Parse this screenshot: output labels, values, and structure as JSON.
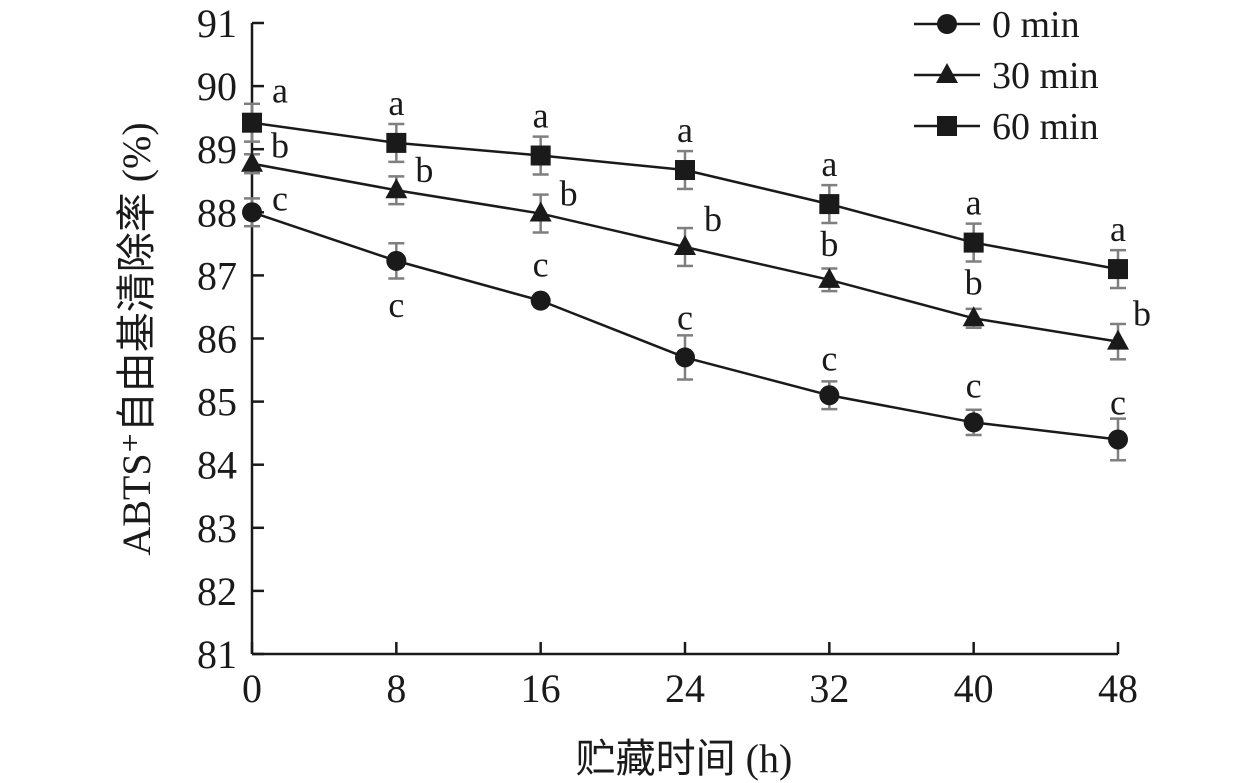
{
  "chart_data": {
    "type": "line",
    "title": "",
    "xlabel": "贮藏时间 (h)",
    "ylabel": "ABTS⁺自由基清除率 (%)",
    "x": [
      0,
      8,
      16,
      24,
      32,
      40,
      48
    ],
    "xlim": [
      0,
      48
    ],
    "ylim": [
      81,
      91
    ],
    "xticks": [
      "0",
      "8",
      "16",
      "24",
      "32",
      "40",
      "48"
    ],
    "yticks": [
      "81",
      "82",
      "83",
      "84",
      "85",
      "86",
      "87",
      "88",
      "89",
      "90",
      "91"
    ],
    "grid": false,
    "legend_position": "top-right",
    "series": [
      {
        "name": "0 min",
        "marker": "circle",
        "values": [
          88.0,
          87.23,
          86.6,
          85.7,
          85.1,
          84.67,
          84.4
        ],
        "errors": [
          0.22,
          0.28,
          0.05,
          0.35,
          0.22,
          0.2,
          0.33
        ],
        "labels": [
          "c",
          "c",
          "c",
          "c",
          "c",
          "c",
          "c"
        ]
      },
      {
        "name": "30 min",
        "marker": "triangle",
        "values": [
          88.77,
          88.35,
          87.98,
          87.45,
          86.93,
          86.32,
          85.95
        ],
        "errors": [
          0.15,
          0.22,
          0.3,
          0.3,
          0.18,
          0.15,
          0.28
        ],
        "labels": [
          "b",
          "b",
          "b",
          "b",
          "b",
          "b",
          "b"
        ]
      },
      {
        "name": "60 min",
        "marker": "square",
        "values": [
          89.42,
          89.1,
          88.9,
          88.67,
          88.13,
          87.52,
          87.1
        ],
        "errors": [
          0.3,
          0.3,
          0.3,
          0.3,
          0.3,
          0.3,
          0.3
        ],
        "labels": [
          "a",
          "a",
          "a",
          "a",
          "a",
          "a",
          "a"
        ]
      }
    ],
    "colors": {
      "line": "#1a1a1a",
      "error_bar": "#7f7f7f",
      "axis": "#1a1a1a"
    }
  }
}
